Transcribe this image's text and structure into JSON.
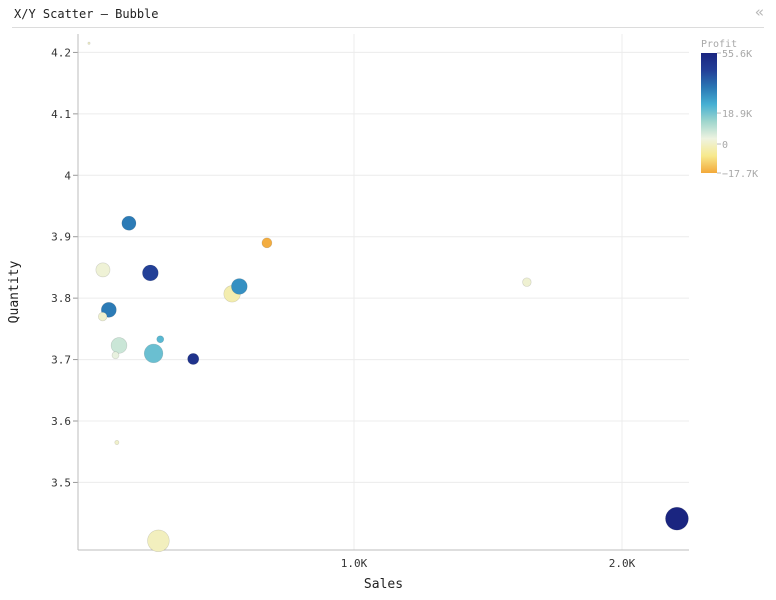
{
  "window": {
    "title": "X/Y Scatter – Bubble",
    "collapse_glyph": "«",
    "collapse_icon": "double-chevron-left-icon"
  },
  "chart_data": {
    "type": "scatter",
    "subtype": "bubble",
    "xlabel": "Sales",
    "ylabel": "Quantity",
    "xlim": [
      -30,
      2250
    ],
    "ylim": [
      3.39,
      4.23
    ],
    "x_ticks": [
      {
        "value": 1000,
        "label": "1.0K"
      },
      {
        "value": 2000,
        "label": "2.0K"
      }
    ],
    "y_ticks": [
      {
        "value": 3.5,
        "label": "3.5"
      },
      {
        "value": 3.6,
        "label": "3.6"
      },
      {
        "value": 3.7,
        "label": "3.7"
      },
      {
        "value": 3.8,
        "label": "3.8"
      },
      {
        "value": 3.9,
        "label": "3.9"
      },
      {
        "value": 4.0,
        "label": "4"
      },
      {
        "value": 4.1,
        "label": "4.1"
      },
      {
        "value": 4.2,
        "label": "4.2"
      }
    ],
    "grid": true,
    "color_legend": {
      "title": "Profit",
      "placement": "top-right",
      "min": -17700,
      "max": 55600,
      "ticks": [
        {
          "value": 55600,
          "label": "55.6K"
        },
        {
          "value": 18900,
          "label": "18.9K"
        },
        {
          "value": 0,
          "label": "0"
        },
        {
          "value": -17700,
          "label": "−17.7K"
        }
      ],
      "colors": [
        "#f3a93a",
        "#f7e98d",
        "#eef3e0",
        "#9fd6cd",
        "#46b0d3",
        "#2a77b4",
        "#233f97",
        "#1a2580"
      ]
    },
    "points": [
      {
        "x": 11,
        "y": 4.215,
        "size": 0.2,
        "profit": 0
      },
      {
        "x": 160,
        "y": 3.922,
        "size": 8,
        "profit": 34000
      },
      {
        "x": 63,
        "y": 3.846,
        "size": 8,
        "profit": 2000
      },
      {
        "x": 240,
        "y": 3.841,
        "size": 10,
        "profit": 45000
      },
      {
        "x": 110,
        "y": 3.707,
        "size": 2,
        "profit": 4000
      },
      {
        "x": 85,
        "y": 3.781,
        "size": 9,
        "profit": 34000
      },
      {
        "x": 62,
        "y": 3.77,
        "size": 3,
        "profit": 1000
      },
      {
        "x": 123,
        "y": 3.723,
        "size": 10,
        "profit": 8000
      },
      {
        "x": 252,
        "y": 3.71,
        "size": 14,
        "profit": 20000
      },
      {
        "x": 277,
        "y": 3.733,
        "size": 2,
        "profit": 22000
      },
      {
        "x": 400,
        "y": 3.701,
        "size": 5,
        "profit": 50000
      },
      {
        "x": 572,
        "y": 3.819,
        "size": 10,
        "profit": 30000
      },
      {
        "x": 545,
        "y": 3.807,
        "size": 11,
        "profit": -3000
      },
      {
        "x": 675,
        "y": 3.89,
        "size": 4,
        "profit": -17000
      },
      {
        "x": 1645,
        "y": 3.826,
        "size": 3,
        "profit": 1500
      },
      {
        "x": 2205,
        "y": 3.441,
        "size": 21,
        "profit": 55600
      },
      {
        "x": 270,
        "y": 3.405,
        "size": 19,
        "profit": -1000
      },
      {
        "x": 115,
        "y": 3.565,
        "size": 0.7,
        "profit": 500
      }
    ]
  }
}
